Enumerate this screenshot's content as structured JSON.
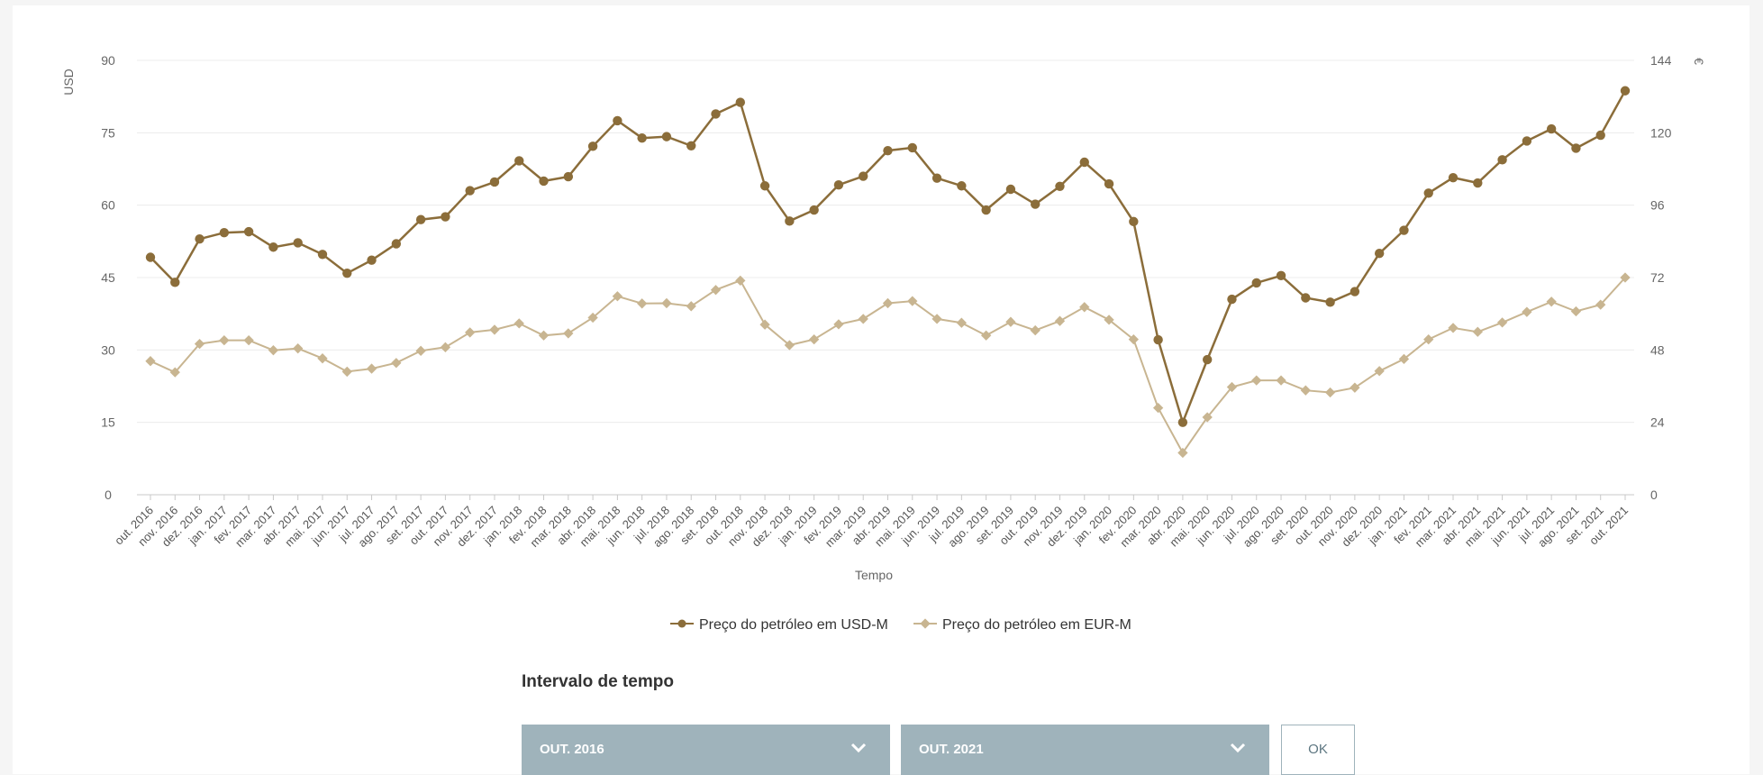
{
  "chart_data": {
    "type": "line",
    "title": "",
    "xlabel": "Tempo",
    "ylabel_left": "USD",
    "ylabel_right": "€",
    "ylim_left": [
      0,
      90
    ],
    "ylim_right": [
      0,
      144
    ],
    "yticks_left": [
      "0",
      "15",
      "30",
      "45",
      "60",
      "75",
      "90"
    ],
    "yticks_right": [
      "0",
      "24",
      "48",
      "72",
      "96",
      "120",
      "144"
    ],
    "grid": true,
    "legend_position": "bottom",
    "categories": [
      "out. 2016",
      "nov. 2016",
      "dez. 2016",
      "jan. 2017",
      "fev. 2017",
      "mar. 2017",
      "abr. 2017",
      "mai. 2017",
      "jun. 2017",
      "jul. 2017",
      "ago. 2017",
      "set. 2017",
      "out. 2017",
      "nov. 2017",
      "dez. 2017",
      "jan. 2018",
      "fev. 2018",
      "mar. 2018",
      "abr. 2018",
      "mai. 2018",
      "jun. 2018",
      "jul. 2018",
      "ago. 2018",
      "set. 2018",
      "out. 2018",
      "nov. 2018",
      "dez. 2018",
      "jan. 2019",
      "fev. 2019",
      "mar. 2019",
      "abr. 2019",
      "mai. 2019",
      "jun. 2019",
      "jul. 2019",
      "ago. 2019",
      "set. 2019",
      "out. 2019",
      "nov. 2019",
      "dez. 2019",
      "jan. 2020",
      "fev. 2020",
      "mar. 2020",
      "abr. 2020",
      "mai. 2020",
      "jun. 2020",
      "jul. 2020",
      "ago. 2020",
      "set. 2020",
      "out. 2020",
      "nov. 2020",
      "dez. 2020",
      "jan. 2021",
      "fev. 2021",
      "mar. 2021",
      "abr. 2021",
      "mai. 2021",
      "jun. 2021",
      "jul. 2021",
      "ago. 2021",
      "set. 2021",
      "out. 2021"
    ],
    "series": [
      {
        "name": "Preço do petróleo em USD-M",
        "axis": "left",
        "color": "#8b6d3a",
        "values": [
          49.2,
          44.0,
          53.0,
          54.3,
          54.5,
          51.3,
          52.2,
          49.8,
          45.9,
          48.6,
          52.0,
          57.0,
          57.6,
          63.0,
          64.8,
          69.2,
          65.0,
          65.9,
          72.2,
          77.5,
          73.9,
          74.2,
          72.3,
          78.9,
          81.3,
          64.0,
          56.7,
          59.0,
          64.2,
          66.0,
          71.3,
          71.9,
          65.6,
          64.0,
          59.0,
          63.3,
          60.2,
          63.9,
          68.9,
          64.4,
          56.6,
          32.1,
          15.0,
          28.0,
          40.5,
          43.9,
          45.4,
          40.8,
          39.9,
          42.1,
          50.0,
          54.8,
          62.5,
          65.7,
          64.6,
          69.4,
          73.3,
          75.8,
          71.8,
          74.5,
          83.7
        ]
      },
      {
        "name": "Preço do petróleo em EUR-M",
        "axis": "right",
        "color": "#c8b591",
        "values": [
          44.3,
          40.6,
          50.0,
          51.2,
          51.2,
          47.9,
          48.5,
          45.2,
          40.8,
          41.8,
          43.7,
          47.7,
          48.9,
          53.8,
          54.7,
          56.8,
          52.8,
          53.5,
          58.7,
          65.8,
          63.4,
          63.5,
          62.5,
          67.9,
          71.0,
          56.4,
          49.6,
          51.5,
          56.5,
          58.3,
          63.5,
          64.2,
          58.3,
          57.0,
          52.8,
          57.3,
          54.5,
          57.6,
          62.2,
          58.0,
          51.5,
          28.8,
          13.9,
          25.7,
          35.7,
          37.9,
          37.9,
          34.6,
          33.9,
          35.5,
          41.0,
          45.0,
          51.5,
          55.3,
          54.0,
          57.1,
          60.6,
          64.0,
          60.8,
          63.0,
          72.0
        ]
      }
    ]
  },
  "controls": {
    "title": "Intervalo de tempo",
    "from_value": "OUT. 2016",
    "to_value": "OUT. 2021",
    "ok_label": "OK",
    "accent_color": "#9fb3bb",
    "chevron_icon": "chevron-down-icon"
  }
}
